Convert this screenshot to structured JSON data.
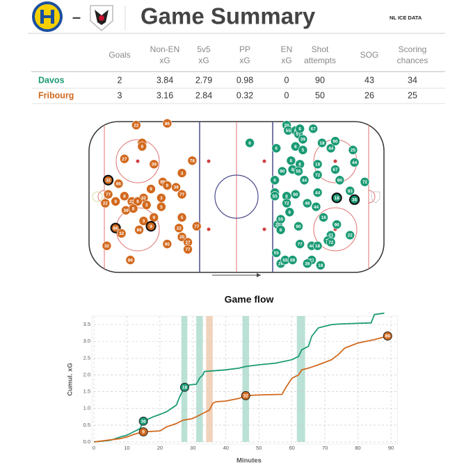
{
  "header": {
    "title": "Game Summary",
    "separator": "–",
    "brand": "NL ICE DATA"
  },
  "table": {
    "columns": [
      "Goals",
      "Non-EN\nxG",
      "5v5\nxG",
      "PP\nxG",
      "EN\nxG",
      "Shot\nattempts",
      "SOG",
      "Scoring\nchances"
    ],
    "colors": [
      "#1a9a74",
      "#d2691e"
    ],
    "rows": [
      [
        "Davos",
        2,
        3.84,
        2.79,
        0.98,
        0,
        90,
        43,
        34
      ],
      [
        "Fribourg",
        3,
        3.16,
        2.84,
        0.32,
        0,
        50,
        26,
        25
      ]
    ]
  },
  "chart_data": [
    {
      "type": "shotmap",
      "xlim": [
        0,
        200
      ],
      "ylim": [
        0,
        85
      ],
      "series": [
        {
          "color": "#1a9a74",
          "x": [
            134,
            135,
            140,
            142,
            143,
            152,
            145,
            140,
            145,
            109,
            127,
            158,
            164,
            179,
            167,
            137,
            143,
            155,
            180,
            131,
            138,
            142,
            155,
            167,
            170,
            187,
            146,
            126,
            126,
            134,
            126,
            134,
            140,
            155,
            168,
            180,
            177,
            136,
            148,
            154,
            159,
            128,
            130,
            142,
            130,
            168,
            164,
            177,
            162,
            164,
            143,
            151,
            155,
            127,
            130,
            133,
            138,
            151,
            148,
            157
          ],
          "values": [
            83,
            80,
            80,
            78,
            81,
            81,
            75,
            71,
            69,
            73,
            70,
            73,
            70,
            69,
            74,
            63,
            61,
            61,
            62,
            57,
            58,
            57,
            55,
            58,
            52,
            51,
            52,
            52,
            45,
            43,
            43,
            39,
            44,
            45,
            42,
            41,
            46,
            34,
            39,
            37,
            31,
            27,
            30,
            26,
            24,
            27,
            21,
            21,
            18,
            17,
            16,
            15,
            15,
            11,
            5,
            7,
            7,
            7,
            5,
            4
          ],
          "labels": [
            "20",
            "55",
            "6",
            "57",
            "6",
            "67",
            "39",
            "8",
            "5",
            "6",
            "6",
            "18",
            "44",
            "25",
            "90",
            "6",
            "6",
            "18",
            "44",
            "90",
            "8",
            "55",
            "72",
            "67",
            "90",
            "72",
            "44",
            "6",
            "6",
            "6",
            "55",
            "72",
            "90",
            "44",
            "18",
            "36",
            "93",
            "6",
            "48",
            "44",
            "18",
            "20",
            "55",
            "90",
            "8",
            "96",
            "21",
            "22",
            "74",
            "72",
            "77",
            "44",
            "18",
            "55",
            "20",
            "55",
            "59",
            "21",
            "38",
            "18"
          ],
          "goals": [
            false,
            false,
            false,
            false,
            false,
            false,
            false,
            false,
            false,
            false,
            false,
            false,
            false,
            false,
            false,
            false,
            false,
            false,
            false,
            false,
            false,
            false,
            false,
            false,
            false,
            false,
            false,
            false,
            false,
            false,
            false,
            false,
            false,
            false,
            true,
            true,
            false,
            false,
            false,
            false,
            false,
            false,
            false,
            false,
            false,
            false,
            false,
            false,
            false,
            false,
            false,
            false,
            false,
            false,
            false,
            false,
            false,
            false,
            false,
            false
          ]
        },
        {
          "color": "#d2691e",
          "x": [
            32,
            53,
            36,
            36,
            24,
            44,
            70,
            63,
            50,
            53,
            59,
            63,
            42,
            49,
            49,
            13,
            20,
            37,
            29,
            33,
            39,
            24,
            18,
            11,
            13,
            25,
            30,
            44,
            63,
            37,
            18,
            42,
            34,
            22,
            61,
            73,
            63,
            67,
            53,
            67,
            12,
            28
          ],
          "values": [
            83,
            84,
            73,
            71,
            64,
            61,
            63,
            56,
            51,
            49,
            48,
            44,
            47,
            42,
            37,
            52,
            50,
            42,
            40,
            40,
            38,
            43,
            40,
            39,
            44,
            35,
            36,
            31,
            31,
            29,
            25,
            26,
            24,
            22,
            25,
            26,
            20,
            17,
            16,
            13,
            15,
            7
          ],
          "labels": [
            "22",
            "86",
            "9",
            "9",
            "27",
            "39",
            "78",
            "3",
            "95",
            "9",
            "39",
            "77",
            "9",
            "3",
            "5",
            "32",
            "86",
            "32",
            "23",
            "9",
            "3",
            "8",
            "9",
            "22",
            "77",
            "39",
            "8",
            "9",
            "5",
            "3",
            "86",
            "9",
            "86",
            "32",
            "22",
            "77",
            "20",
            "27",
            "95",
            "77",
            "32",
            "86"
          ],
          "goals": [
            false,
            false,
            false,
            false,
            false,
            false,
            false,
            false,
            false,
            false,
            false,
            false,
            false,
            false,
            false,
            true,
            false,
            false,
            false,
            false,
            false,
            false,
            false,
            false,
            false,
            false,
            false,
            false,
            false,
            false,
            true,
            true,
            false,
            false,
            false,
            false,
            false,
            false,
            false,
            false,
            false,
            false
          ]
        }
      ]
    },
    {
      "type": "line",
      "title": "Game flow",
      "x_label": "Minutes",
      "y_label": "Cumul. xG",
      "xlim": [
        0,
        92
      ],
      "ylim": [
        0,
        3.75
      ],
      "grid": true,
      "xticks": [
        0,
        10,
        20,
        30,
        40,
        50,
        60,
        70,
        80,
        90
      ],
      "yticks": [
        {
          "value": 0,
          "label": "0.0"
        },
        0.5,
        {
          "value": 1,
          "label": "1.0"
        },
        1.5,
        {
          "value": 2,
          "label": "2.0"
        },
        2.5,
        {
          "value": 3,
          "label": "3.0"
        },
        3.5
      ],
      "bands": [
        {
          "start": 26.5,
          "end": 28.3,
          "color": "#1a9a74"
        },
        {
          "start": 31,
          "end": 33,
          "color": "#1a9a74"
        },
        {
          "start": 34,
          "end": 36,
          "color": "#d2691e"
        },
        {
          "start": 45,
          "end": 47,
          "color": "#1a9a74"
        },
        {
          "start": 61.5,
          "end": 64,
          "color": "#1a9a74"
        }
      ],
      "series": [
        {
          "color": "#1a9a74",
          "x": [
            0,
            5,
            8,
            10,
            12,
            14,
            15,
            18,
            20,
            22,
            25,
            26,
            27.5,
            29,
            31,
            32,
            33,
            33.5,
            36,
            40,
            44,
            46,
            50,
            55,
            60,
            62,
            63,
            65,
            66,
            68,
            72,
            75,
            84,
            85,
            88
          ],
          "values": [
            0,
            0.05,
            0.15,
            0.2,
            0.3,
            0.4,
            0.62,
            0.75,
            0.82,
            0.9,
            1.1,
            1.35,
            1.63,
            1.7,
            1.72,
            1.9,
            2.0,
            2.1,
            2.12,
            2.15,
            2.2,
            2.25,
            2.3,
            2.35,
            2.45,
            2.55,
            2.75,
            2.85,
            3.15,
            3.4,
            3.5,
            3.52,
            3.55,
            3.8,
            3.84
          ]
        },
        {
          "color": "#d2691e",
          "x": [
            0,
            8,
            10,
            12,
            14,
            15,
            20,
            22,
            25,
            27,
            29,
            30,
            33,
            35,
            36,
            37,
            40,
            44,
            46,
            50,
            57,
            58,
            60,
            62,
            63,
            65,
            68,
            72,
            74,
            76,
            80,
            85,
            89
          ],
          "values": [
            0,
            0.1,
            0.15,
            0.22,
            0.28,
            0.3,
            0.33,
            0.45,
            0.55,
            0.65,
            0.68,
            0.7,
            0.85,
            0.95,
            1.15,
            1.2,
            1.22,
            1.3,
            1.38,
            1.4,
            1.42,
            1.6,
            1.9,
            2.0,
            2.15,
            2.2,
            2.3,
            2.45,
            2.6,
            2.8,
            2.95,
            3.05,
            3.16
          ]
        }
      ],
      "annotations": [
        {
          "x": 15,
          "y": 0.62,
          "label": "36",
          "color": "#1a9a74"
        },
        {
          "x": 27.5,
          "y": 1.63,
          "label": "18",
          "color": "#1a9a74"
        },
        {
          "x": 15,
          "y": 0.3,
          "label": "9",
          "color": "#d2691e"
        },
        {
          "x": 46,
          "y": 1.38,
          "label": "32",
          "color": "#d2691e"
        },
        {
          "x": 89,
          "y": 3.16,
          "label": "86",
          "color": "#d2691e"
        }
      ]
    }
  ]
}
